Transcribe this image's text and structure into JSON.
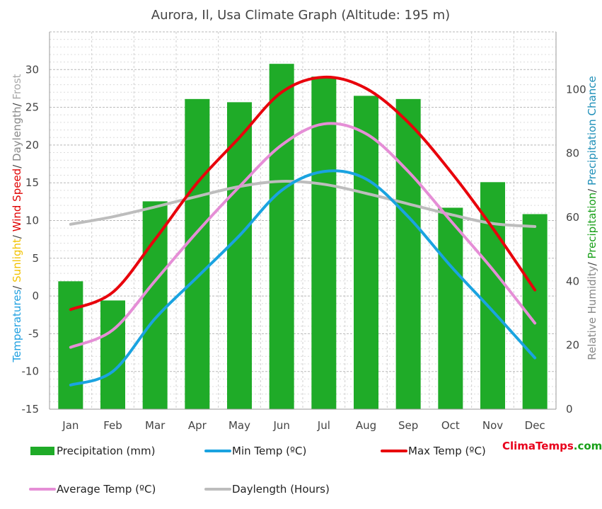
{
  "title": "Aurora, Il, Usa Climate Graph (Altitude: 195 m)",
  "brand": {
    "part1": "Clima",
    "part2": "Temps",
    "part3": ".com"
  },
  "left_axis_label": [
    {
      "text": "Temperatures",
      "color": "#1e9fe0"
    },
    {
      "text": "/ ",
      "color": "#444444"
    },
    {
      "text": "Sunlight",
      "color": "#f2c200"
    },
    {
      "text": "/ ",
      "color": "#444444"
    },
    {
      "text": "Wind Speed",
      "color": "#e00000"
    },
    {
      "text": "/ ",
      "color": "#444444"
    },
    {
      "text": "Daylength",
      "color": "#888888"
    },
    {
      "text": "/ ",
      "color": "#444444"
    },
    {
      "text": "Frost",
      "color": "#aaaaaa"
    }
  ],
  "right_axis_label": [
    {
      "text": "Relative Humidity",
      "color": "#888888"
    },
    {
      "text": "/ ",
      "color": "#444444"
    },
    {
      "text": "Precipitation",
      "color": "#1aa01a"
    },
    {
      "text": "/ ",
      "color": "#444444"
    },
    {
      "text": "Precipitation Chance",
      "color": "#1e8fb8"
    }
  ],
  "chart_data": {
    "type": "bar+line",
    "categories": [
      "Jan",
      "Feb",
      "Mar",
      "Apr",
      "May",
      "Jun",
      "Jul",
      "Aug",
      "Sep",
      "Oct",
      "Nov",
      "Dec"
    ],
    "left_axis": {
      "ylim": [
        -15,
        35
      ],
      "ticks": [
        -15,
        -10,
        -5,
        0,
        5,
        10,
        15,
        20,
        25,
        30
      ]
    },
    "right_axis": {
      "ylim": [
        0,
        118
      ],
      "ticks": [
        0,
        20,
        40,
        60,
        80,
        100
      ]
    },
    "grid": true,
    "legend_position": "bottom",
    "series": [
      {
        "name": "Precipitation (mm)",
        "kind": "bar",
        "axis": "right",
        "color": "#1fab28",
        "values": [
          40,
          34,
          65,
          97,
          96,
          108,
          104,
          98,
          97,
          63,
          71,
          61
        ]
      },
      {
        "name": "Min Temp (ºC)",
        "kind": "line",
        "axis": "left",
        "color": "#1aa3e0",
        "values": [
          -11.8,
          -10,
          -3,
          2.5,
          8,
          14,
          16.5,
          15.5,
          10.5,
          4,
          -2,
          -8.2
        ]
      },
      {
        "name": "Max Temp (ºC)",
        "kind": "line",
        "axis": "left",
        "color": "#e8000b",
        "values": [
          -1.8,
          0.5,
          7.5,
          15,
          21,
          27,
          29,
          27.5,
          23,
          16.5,
          9,
          0.8
        ]
      },
      {
        "name": "Average Temp (ºC)",
        "kind": "line",
        "axis": "left",
        "color": "#e58ed6",
        "values": [
          -6.8,
          -4.5,
          2,
          8.5,
          14.5,
          20,
          22.8,
          21.5,
          16.5,
          10,
          3.5,
          -3.6
        ]
      },
      {
        "name": "Daylength (Hours)",
        "kind": "line",
        "axis": "left",
        "color": "#bdbdbd",
        "values": [
          9.5,
          10.5,
          11.8,
          13.2,
          14.5,
          15.2,
          14.8,
          13.6,
          12.2,
          10.8,
          9.6,
          9.2
        ]
      }
    ]
  }
}
